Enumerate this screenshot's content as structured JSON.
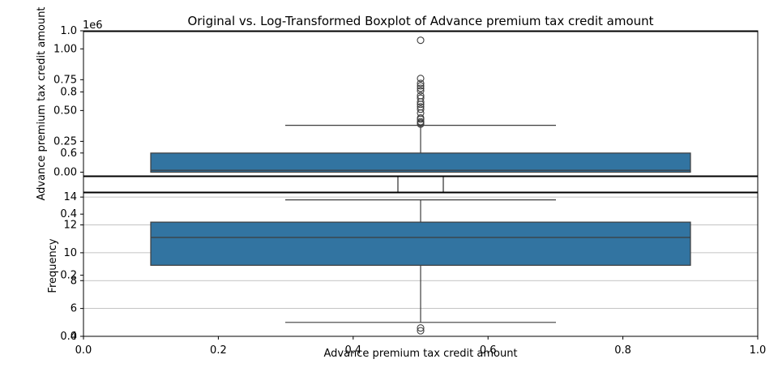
{
  "figure": {
    "title": "Original vs. Log-Transformed Boxplot of Advance premium tax credit amount",
    "outer_x_ticks": [
      "0.0",
      "0.2",
      "0.4",
      "0.6",
      "0.8",
      "1.0"
    ],
    "outer_y_ticks": [
      "0.0",
      "0.2",
      "0.4",
      "0.6",
      "0.8",
      "1.0"
    ]
  },
  "chart_data": [
    {
      "type": "box",
      "panel": "original",
      "ylabel": "Advance premium tax credit amount",
      "xlabel": "",
      "y_offset_label": "1e6",
      "ylim": [
        -0.03,
        1.14
      ],
      "y_ticks": [
        0.0,
        0.25,
        0.5,
        0.75,
        1.0
      ],
      "y_tick_labels": [
        "0.00",
        "0.25",
        "0.50",
        "0.75",
        "1.00"
      ],
      "grid": false,
      "color": "#3274a1",
      "box": {
        "whisker_low": 0.0,
        "q1": 0.0,
        "median": 0.015,
        "q3": 0.155,
        "whisker_high": 0.38
      },
      "outliers": [
        0.39,
        0.4,
        0.41,
        0.43,
        0.44,
        0.48,
        0.51,
        0.53,
        0.55,
        0.57,
        0.6,
        0.62,
        0.66,
        0.68,
        0.7,
        0.72,
        0.76,
        1.07
      ]
    },
    {
      "type": "box",
      "panel": "log",
      "ylabel": "Frequency",
      "xlabel": "Advance premium tax credit amount",
      "ylim": [
        4.0,
        14.3
      ],
      "y_ticks": [
        4,
        6,
        8,
        10,
        12,
        14
      ],
      "y_tick_labels": [
        "4",
        "6",
        "8",
        "10",
        "12",
        "14"
      ],
      "grid": true,
      "color": "#3274a1",
      "box": {
        "whisker_low": 5.0,
        "q1": 9.1,
        "median": 11.1,
        "q3": 12.2,
        "whisker_high": 13.8
      },
      "outliers": [
        4.6,
        4.4
      ]
    }
  ]
}
